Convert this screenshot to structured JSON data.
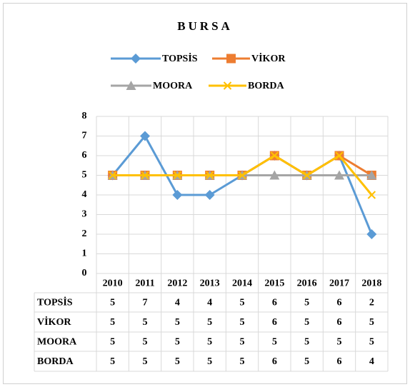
{
  "chart_data": {
    "type": "line",
    "title": "BURSA",
    "categories": [
      "2010",
      "2011",
      "2012",
      "2013",
      "2014",
      "2015",
      "2016",
      "2017",
      "2018"
    ],
    "series": [
      {
        "name": "TOPSİS",
        "color": "#5b9bd5",
        "marker": "diamond",
        "values": [
          5,
          7,
          4,
          4,
          5,
          6,
          5,
          6,
          2
        ]
      },
      {
        "name": "VİKOR",
        "color": "#ed7d31",
        "marker": "square",
        "values": [
          5,
          5,
          5,
          5,
          5,
          6,
          5,
          6,
          5
        ]
      },
      {
        "name": "MOORA",
        "color": "#a5a5a5",
        "marker": "triangle",
        "values": [
          5,
          5,
          5,
          5,
          5,
          5,
          5,
          5,
          5
        ]
      },
      {
        "name": "BORDA",
        "color": "#ffc000",
        "marker": "x",
        "values": [
          5,
          5,
          5,
          5,
          5,
          6,
          5,
          6,
          4
        ]
      }
    ],
    "ylim": [
      0,
      8
    ],
    "yticks": [
      0,
      1,
      2,
      3,
      4,
      5,
      6,
      7,
      8
    ],
    "grid": true,
    "legend": "top",
    "data_table": true
  }
}
